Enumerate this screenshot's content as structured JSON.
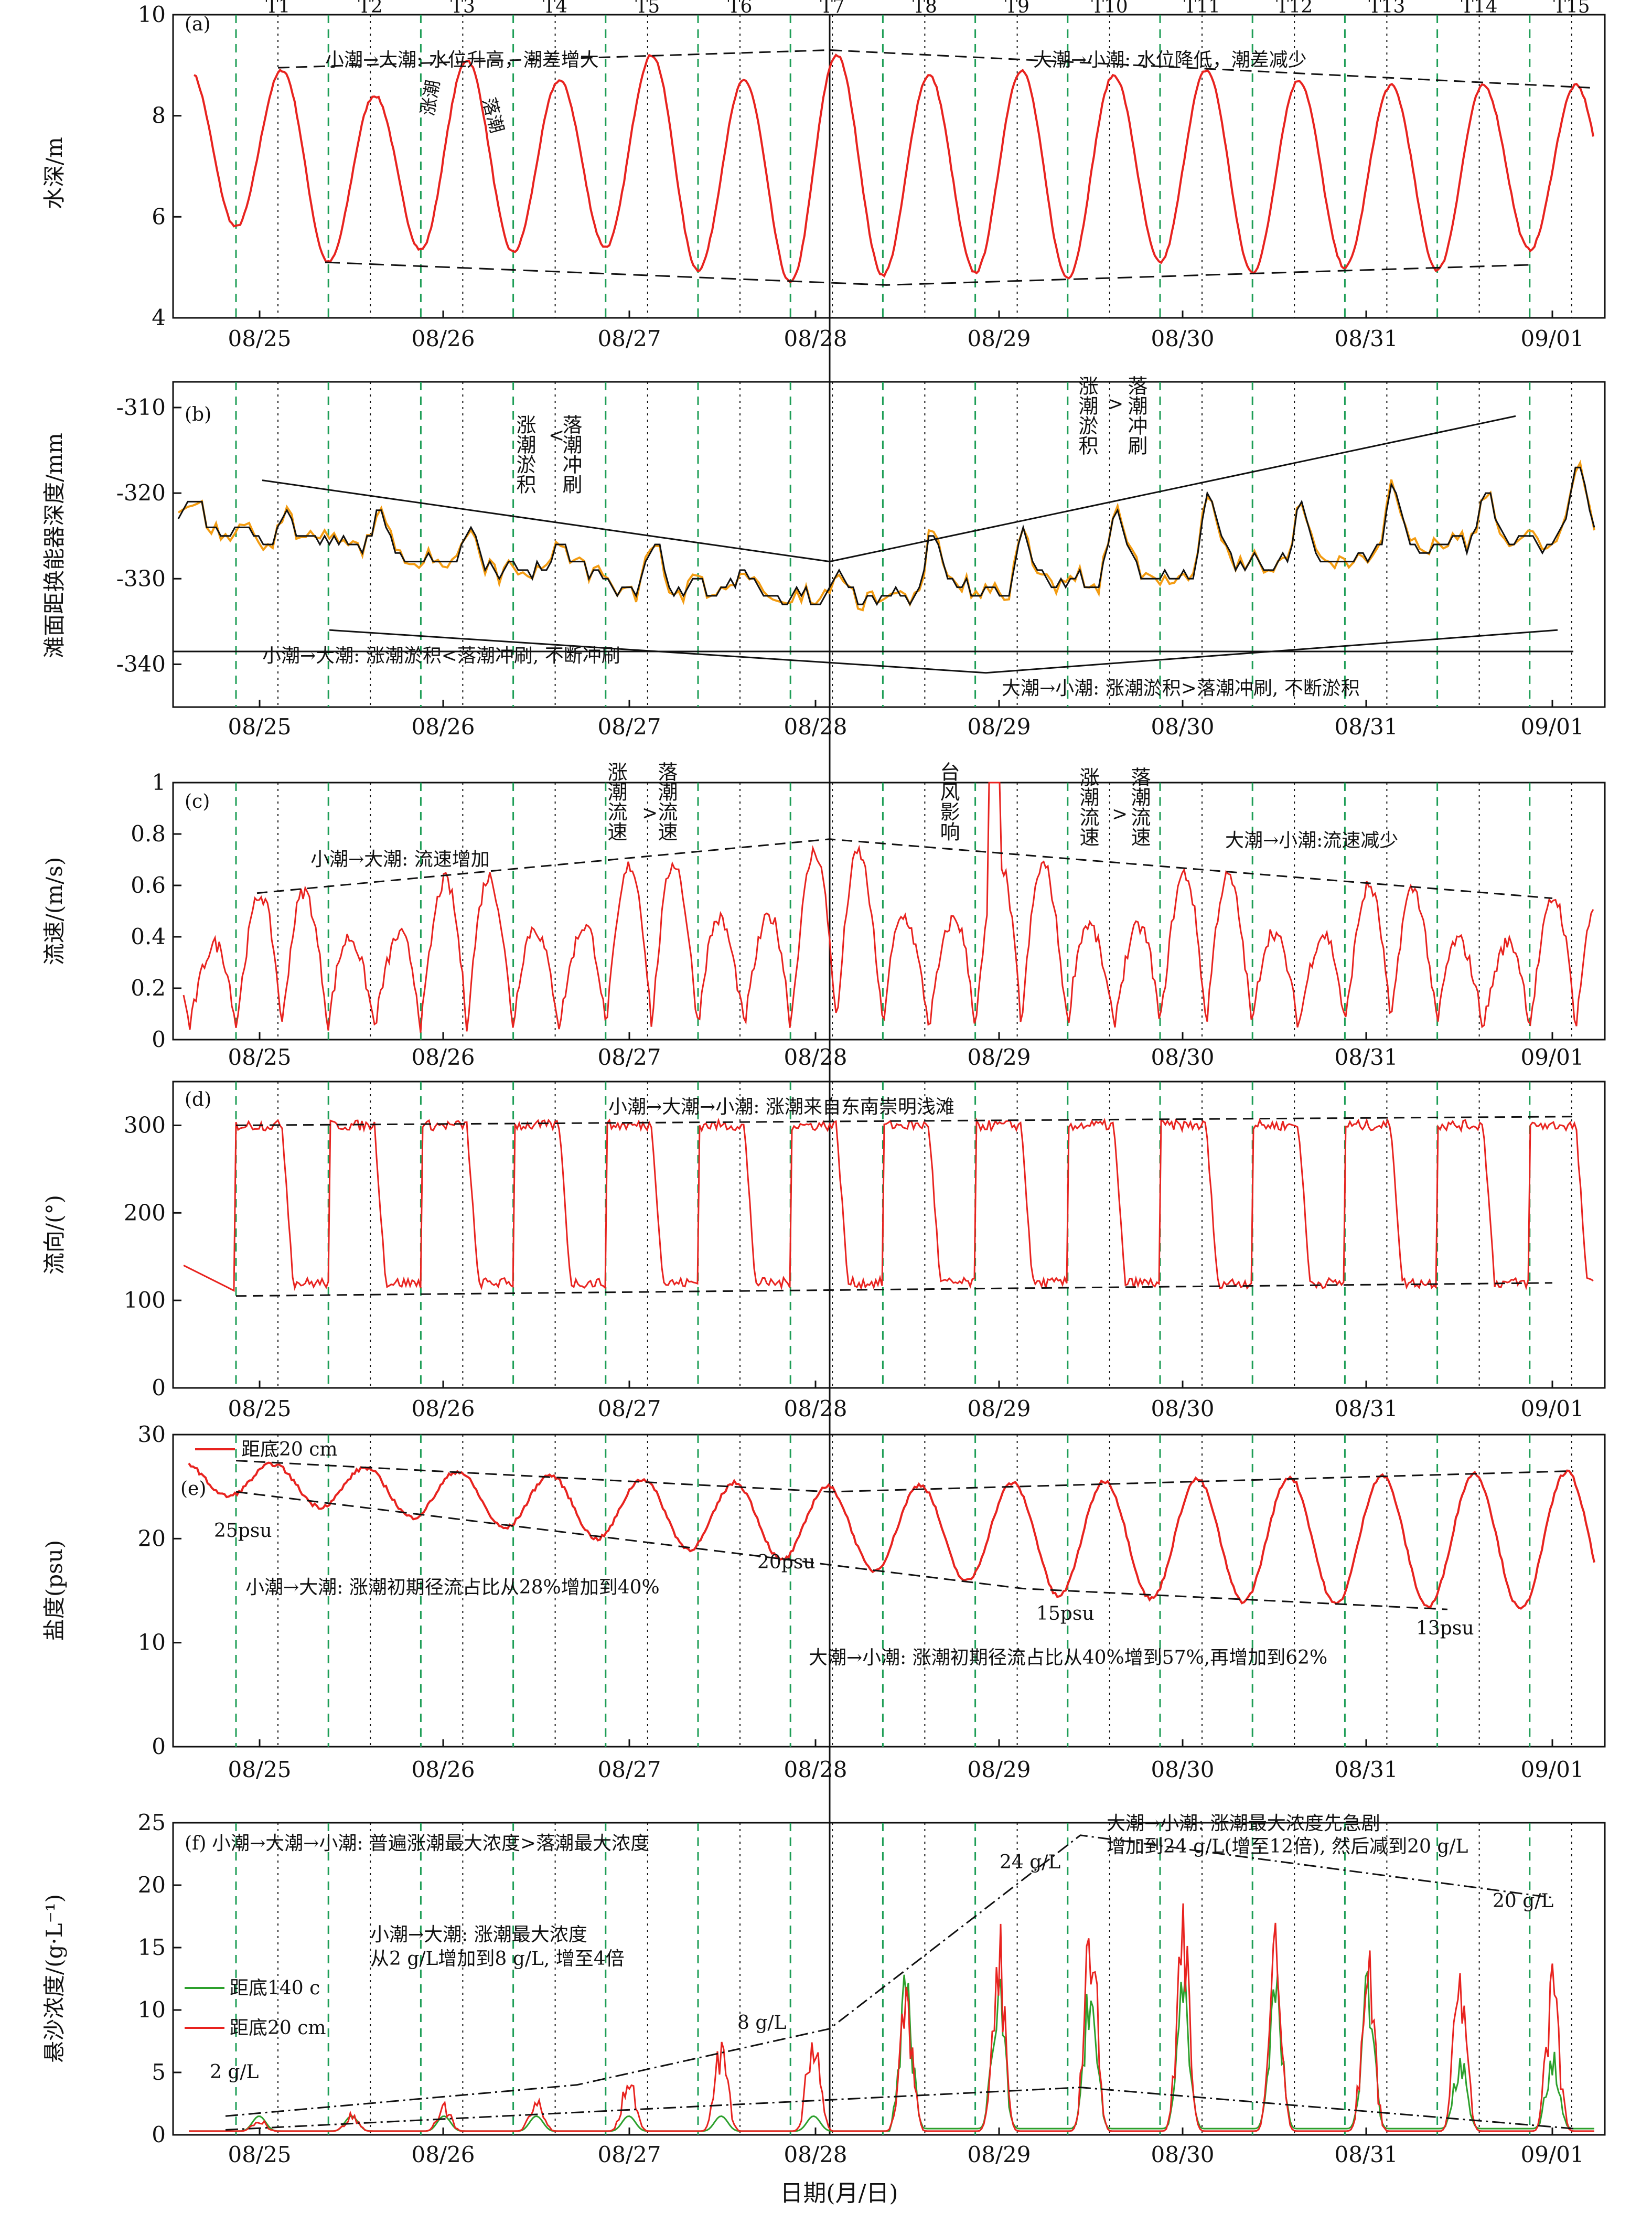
{
  "figure": {
    "xlabel": "日期(月/日)",
    "date_ticks": [
      "08/25",
      "08/26",
      "08/27",
      "08/28",
      "08/29",
      "08/30",
      "08/31",
      "09/01"
    ],
    "tide_labels": [
      "T1",
      "T2",
      "T3",
      "T4",
      "T5",
      "T6",
      "T7",
      "T8",
      "T9",
      "T10",
      "T11",
      "T12",
      "T13",
      "T14",
      "T15"
    ],
    "colors": {
      "red": "#e8231f",
      "green": "#2ca02c",
      "blue_dashed": "#1f9e57",
      "orange": "#f39c12",
      "black": "#111111"
    }
  },
  "chart_data": [
    {
      "panel": "(a)",
      "type": "line",
      "ylabel": "水深/m",
      "ylim": [
        4,
        10
      ],
      "yticks": [
        4,
        6,
        8,
        10
      ],
      "series": [
        {
          "values": {
            "troughs": [
              5.8,
              5.1,
              5.35,
              5.3,
              5.4,
              4.95,
              4.7,
              4.85,
              4.9,
              4.8,
              5.1,
              4.9,
              5.0,
              4.95,
              5.35
            ],
            "peaks": [
              8.9,
              8.4,
              9.1,
              8.7,
              9.2,
              8.7,
              9.2,
              8.8,
              8.9,
              8.8,
              8.9,
              8.7,
              8.6,
              8.6,
              8.6
            ]
          }
        }
      ],
      "annotations": [
        "小潮→大潮: 水位升高，潮差增大",
        "大潮→小潮: 水位降低，潮差减少",
        "涨潮",
        "落潮"
      ]
    },
    {
      "panel": "(b)",
      "type": "line",
      "ylabel": "滩面距换能器深度/mm",
      "ylim": [
        -345,
        -307
      ],
      "yticks": [
        -340,
        -330,
        -320,
        -310
      ],
      "annotations": [
        "涨潮淤积",
        "<",
        "落潮冲刷",
        "涨潮淤积",
        ">",
        "落潮冲刷",
        "小潮→大潮: 涨潮淤积<落潮冲刷, 不断冲刷",
        "大潮→小潮: 涨潮淤积>落潮冲刷, 不断淤积"
      ]
    },
    {
      "panel": "(c)",
      "type": "line",
      "ylabel": "流速/(m/s)",
      "ylim": [
        0,
        1.0
      ],
      "yticks": [
        0,
        0.2,
        0.4,
        0.6,
        0.8,
        1.0
      ],
      "annotations": [
        "小潮→大潮: 流速增加",
        "涨潮流速",
        ">",
        "落潮流速",
        "台风影响",
        "涨潮流速",
        ">",
        "落潮流速",
        "大潮→小潮:流速减少"
      ]
    },
    {
      "panel": "(d)",
      "type": "line",
      "ylabel": "流向/(°)",
      "ylim": [
        0,
        350
      ],
      "yticks": [
        0,
        100,
        200,
        300
      ],
      "annotations": [
        "小潮→大潮→小潮: 涨潮来自东南崇明浅滩"
      ]
    },
    {
      "panel": "(e)",
      "type": "line",
      "ylabel": "盐度(psu)",
      "ylim": [
        0,
        30
      ],
      "yticks": [
        0,
        10,
        20,
        30
      ],
      "legend": [
        "距底20 cm"
      ],
      "annotations": [
        "25psu",
        "20psu",
        "15psu",
        "13psu",
        "小潮→大潮: 涨潮初期径流占比从28%增加到40%",
        "大潮→小潮: 涨潮初期径流占比从40%增到57%,再增加到62%"
      ]
    },
    {
      "panel": "(f)",
      "type": "line",
      "ylabel": "悬沙浓度/(g·L⁻¹)",
      "ylim": [
        0,
        25
      ],
      "yticks": [
        0,
        5,
        10,
        15,
        20,
        25
      ],
      "legend": [
        "距底140 c",
        "距底20 cm"
      ],
      "annotations": [
        "小潮→大潮→小潮: 普遍涨潮最大浓度>落潮最大浓度",
        "大潮→小潮: 涨潮最大浓度先急剧",
        "增加到24 g/L(增至12倍), 然后减到20 g/L",
        "小潮→大潮: 涨潮最大浓度",
        "从2 g/L增加到8 g/L, 增至4倍",
        "2 g/L",
        "8 g/L",
        "24 g/L",
        "20 g/L"
      ]
    }
  ]
}
